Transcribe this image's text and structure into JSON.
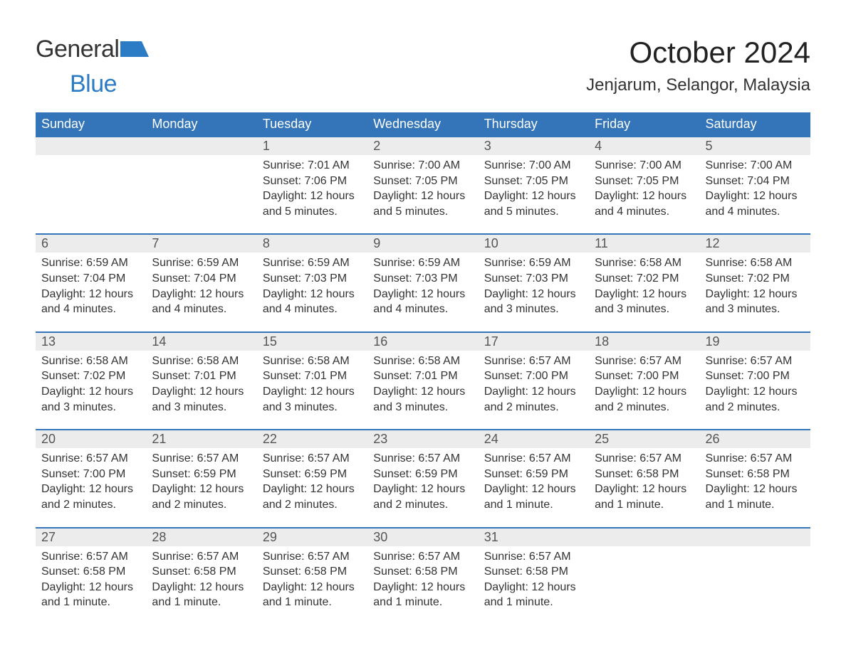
{
  "logo": {
    "text_general": "General",
    "text_blue": "Blue",
    "shape_color": "#2b7cc4",
    "text_color": "#333333"
  },
  "header": {
    "month_title": "October 2024",
    "location": "Jenjarum, Selangor, Malaysia"
  },
  "calendar": {
    "header_bg": "#3375b8",
    "header_text_color": "#ffffff",
    "daynum_bg": "#ececec",
    "daynum_border": "#3375b8",
    "body_bg": "#ffffff",
    "text_color": "#333333",
    "font_size_header": 18,
    "font_size_daynum": 18,
    "font_size_body": 16,
    "day_headers": [
      "Sunday",
      "Monday",
      "Tuesday",
      "Wednesday",
      "Thursday",
      "Friday",
      "Saturday"
    ],
    "weeks": [
      [
        null,
        null,
        {
          "num": "1",
          "sunrise": "Sunrise: 7:01 AM",
          "sunset": "Sunset: 7:06 PM",
          "daylight": "Daylight: 12 hours and 5 minutes."
        },
        {
          "num": "2",
          "sunrise": "Sunrise: 7:00 AM",
          "sunset": "Sunset: 7:05 PM",
          "daylight": "Daylight: 12 hours and 5 minutes."
        },
        {
          "num": "3",
          "sunrise": "Sunrise: 7:00 AM",
          "sunset": "Sunset: 7:05 PM",
          "daylight": "Daylight: 12 hours and 5 minutes."
        },
        {
          "num": "4",
          "sunrise": "Sunrise: 7:00 AM",
          "sunset": "Sunset: 7:05 PM",
          "daylight": "Daylight: 12 hours and 4 minutes."
        },
        {
          "num": "5",
          "sunrise": "Sunrise: 7:00 AM",
          "sunset": "Sunset: 7:04 PM",
          "daylight": "Daylight: 12 hours and 4 minutes."
        }
      ],
      [
        {
          "num": "6",
          "sunrise": "Sunrise: 6:59 AM",
          "sunset": "Sunset: 7:04 PM",
          "daylight": "Daylight: 12 hours and 4 minutes."
        },
        {
          "num": "7",
          "sunrise": "Sunrise: 6:59 AM",
          "sunset": "Sunset: 7:04 PM",
          "daylight": "Daylight: 12 hours and 4 minutes."
        },
        {
          "num": "8",
          "sunrise": "Sunrise: 6:59 AM",
          "sunset": "Sunset: 7:03 PM",
          "daylight": "Daylight: 12 hours and 4 minutes."
        },
        {
          "num": "9",
          "sunrise": "Sunrise: 6:59 AM",
          "sunset": "Sunset: 7:03 PM",
          "daylight": "Daylight: 12 hours and 4 minutes."
        },
        {
          "num": "10",
          "sunrise": "Sunrise: 6:59 AM",
          "sunset": "Sunset: 7:03 PM",
          "daylight": "Daylight: 12 hours and 3 minutes."
        },
        {
          "num": "11",
          "sunrise": "Sunrise: 6:58 AM",
          "sunset": "Sunset: 7:02 PM",
          "daylight": "Daylight: 12 hours and 3 minutes."
        },
        {
          "num": "12",
          "sunrise": "Sunrise: 6:58 AM",
          "sunset": "Sunset: 7:02 PM",
          "daylight": "Daylight: 12 hours and 3 minutes."
        }
      ],
      [
        {
          "num": "13",
          "sunrise": "Sunrise: 6:58 AM",
          "sunset": "Sunset: 7:02 PM",
          "daylight": "Daylight: 12 hours and 3 minutes."
        },
        {
          "num": "14",
          "sunrise": "Sunrise: 6:58 AM",
          "sunset": "Sunset: 7:01 PM",
          "daylight": "Daylight: 12 hours and 3 minutes."
        },
        {
          "num": "15",
          "sunrise": "Sunrise: 6:58 AM",
          "sunset": "Sunset: 7:01 PM",
          "daylight": "Daylight: 12 hours and 3 minutes."
        },
        {
          "num": "16",
          "sunrise": "Sunrise: 6:58 AM",
          "sunset": "Sunset: 7:01 PM",
          "daylight": "Daylight: 12 hours and 3 minutes."
        },
        {
          "num": "17",
          "sunrise": "Sunrise: 6:57 AM",
          "sunset": "Sunset: 7:00 PM",
          "daylight": "Daylight: 12 hours and 2 minutes."
        },
        {
          "num": "18",
          "sunrise": "Sunrise: 6:57 AM",
          "sunset": "Sunset: 7:00 PM",
          "daylight": "Daylight: 12 hours and 2 minutes."
        },
        {
          "num": "19",
          "sunrise": "Sunrise: 6:57 AM",
          "sunset": "Sunset: 7:00 PM",
          "daylight": "Daylight: 12 hours and 2 minutes."
        }
      ],
      [
        {
          "num": "20",
          "sunrise": "Sunrise: 6:57 AM",
          "sunset": "Sunset: 7:00 PM",
          "daylight": "Daylight: 12 hours and 2 minutes."
        },
        {
          "num": "21",
          "sunrise": "Sunrise: 6:57 AM",
          "sunset": "Sunset: 6:59 PM",
          "daylight": "Daylight: 12 hours and 2 minutes."
        },
        {
          "num": "22",
          "sunrise": "Sunrise: 6:57 AM",
          "sunset": "Sunset: 6:59 PM",
          "daylight": "Daylight: 12 hours and 2 minutes."
        },
        {
          "num": "23",
          "sunrise": "Sunrise: 6:57 AM",
          "sunset": "Sunset: 6:59 PM",
          "daylight": "Daylight: 12 hours and 2 minutes."
        },
        {
          "num": "24",
          "sunrise": "Sunrise: 6:57 AM",
          "sunset": "Sunset: 6:59 PM",
          "daylight": "Daylight: 12 hours and 1 minute."
        },
        {
          "num": "25",
          "sunrise": "Sunrise: 6:57 AM",
          "sunset": "Sunset: 6:58 PM",
          "daylight": "Daylight: 12 hours and 1 minute."
        },
        {
          "num": "26",
          "sunrise": "Sunrise: 6:57 AM",
          "sunset": "Sunset: 6:58 PM",
          "daylight": "Daylight: 12 hours and 1 minute."
        }
      ],
      [
        {
          "num": "27",
          "sunrise": "Sunrise: 6:57 AM",
          "sunset": "Sunset: 6:58 PM",
          "daylight": "Daylight: 12 hours and 1 minute."
        },
        {
          "num": "28",
          "sunrise": "Sunrise: 6:57 AM",
          "sunset": "Sunset: 6:58 PM",
          "daylight": "Daylight: 12 hours and 1 minute."
        },
        {
          "num": "29",
          "sunrise": "Sunrise: 6:57 AM",
          "sunset": "Sunset: 6:58 PM",
          "daylight": "Daylight: 12 hours and 1 minute."
        },
        {
          "num": "30",
          "sunrise": "Sunrise: 6:57 AM",
          "sunset": "Sunset: 6:58 PM",
          "daylight": "Daylight: 12 hours and 1 minute."
        },
        {
          "num": "31",
          "sunrise": "Sunrise: 6:57 AM",
          "sunset": "Sunset: 6:58 PM",
          "daylight": "Daylight: 12 hours and 1 minute."
        },
        null,
        null
      ]
    ]
  }
}
